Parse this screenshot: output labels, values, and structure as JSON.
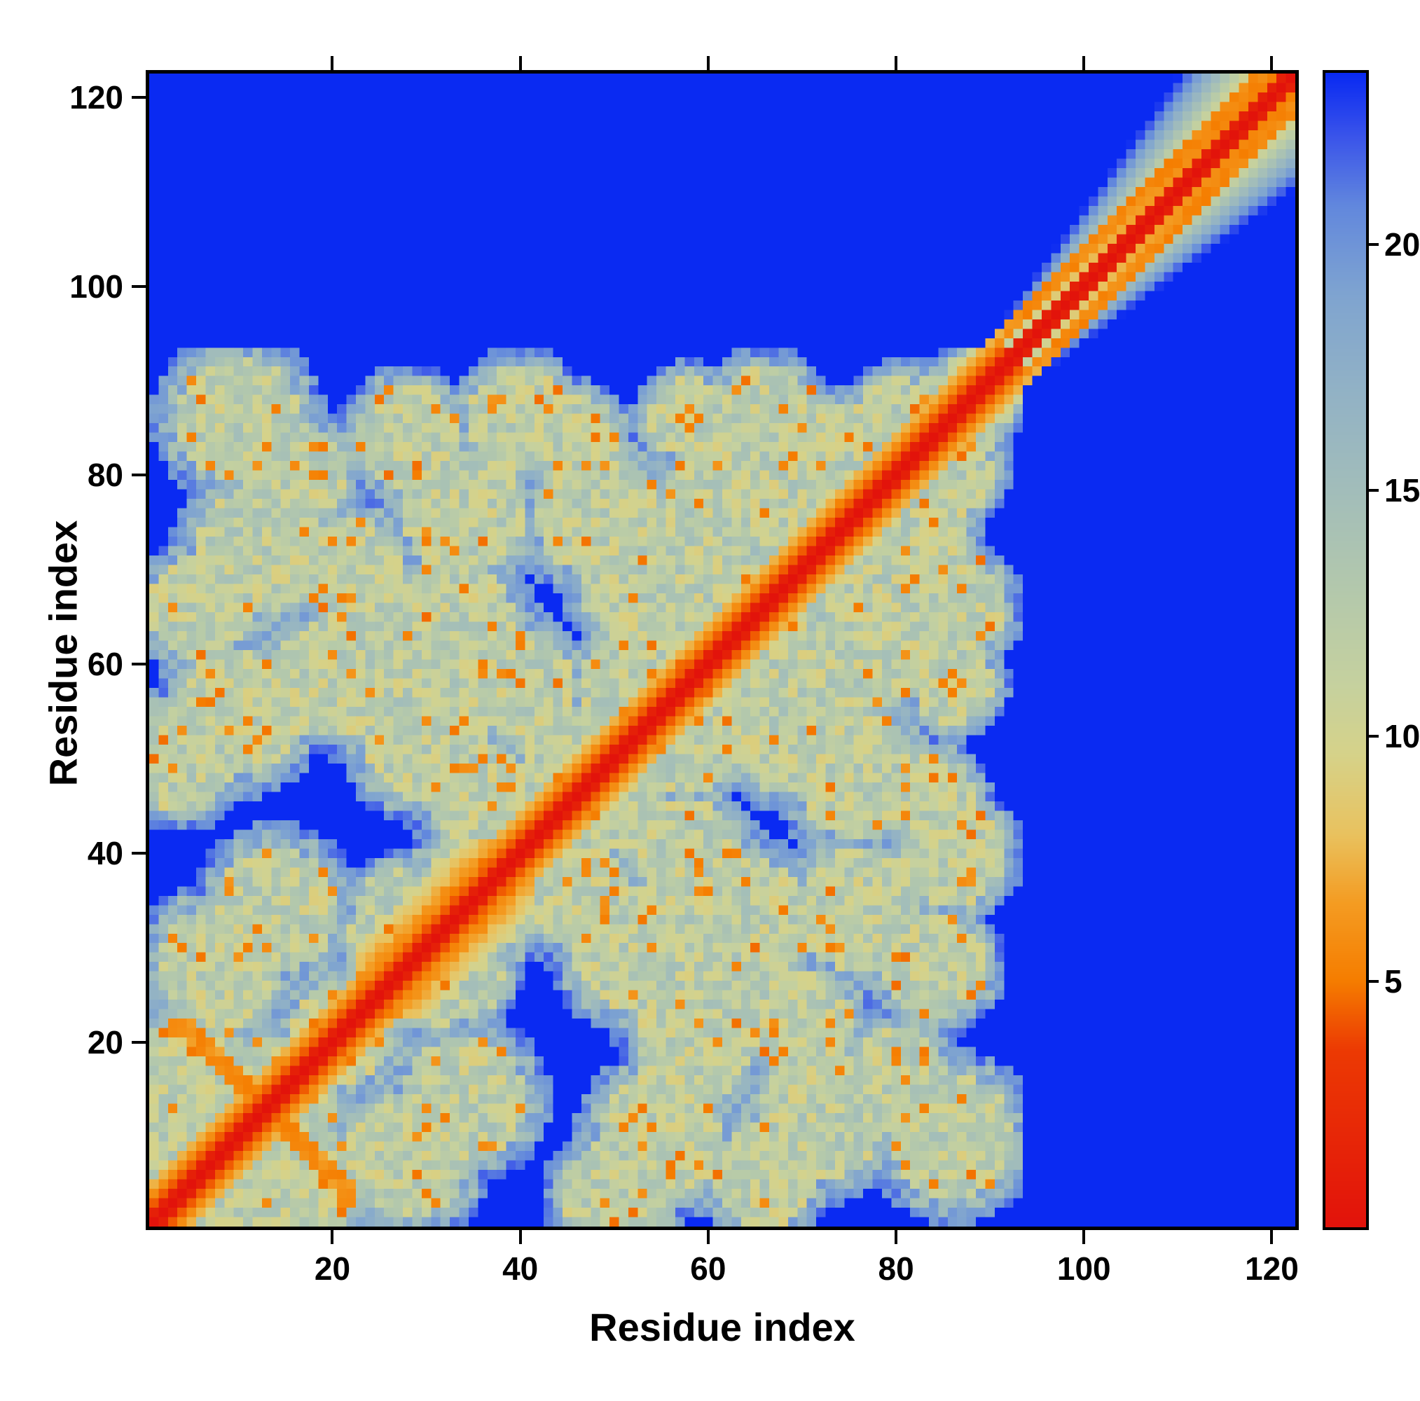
{
  "figure": {
    "background": "#ffffff"
  },
  "chart_data": {
    "type": "heatmap",
    "title": "",
    "xlabel": "Residue index",
    "ylabel": "Residue index",
    "n_residues": 122,
    "x_range": [
      1,
      122
    ],
    "y_range": [
      1,
      122
    ],
    "x_ticks": [
      20,
      40,
      60,
      80,
      100,
      120
    ],
    "y_ticks": [
      20,
      40,
      60,
      80,
      100,
      120
    ],
    "value_range": [
      0,
      23.5
    ],
    "colorbar_ticks": [
      5,
      10,
      15,
      20
    ],
    "background_value_color": "#0a2af2",
    "diagonal_value": 0,
    "colormap_stops": [
      [
        0,
        "#e2130b"
      ],
      [
        3.6,
        "#ec3a03"
      ],
      [
        5,
        "#f57d00"
      ],
      [
        6.6,
        "#f49c22"
      ],
      [
        8,
        "#e9c25f"
      ],
      [
        9.6,
        "#d6d289"
      ],
      [
        11,
        "#c6d19e"
      ],
      [
        13,
        "#b3c8ac"
      ],
      [
        15,
        "#a2bdba"
      ],
      [
        17,
        "#92b2c5"
      ],
      [
        19,
        "#7fa4d0"
      ],
      [
        20.8,
        "#6288dd"
      ],
      [
        22.2,
        "#3b55ea"
      ],
      [
        23.5,
        "#0a2af2"
      ]
    ],
    "structure_model": {
      "helix_region_start": 92,
      "helix_band_base_halfwidth": 4,
      "helix_band_growth": 0.3,
      "helix_periodic_contact_offset": 4,
      "red_block": [
        89,
        93
      ],
      "hairpin_antidiagonal": {
        "range": [
          3,
          22
        ],
        "sum": 26
      },
      "thick_diagonal_segment": [
        23,
        41
      ],
      "speckle_probability": 0.055,
      "speckle_value": 5,
      "contact_blobs": [
        [
          6,
          6,
          7
        ],
        [
          14,
          14,
          6
        ],
        [
          21,
          21,
          5
        ],
        [
          29,
          29,
          7
        ],
        [
          36,
          36,
          6
        ],
        [
          44,
          44,
          6
        ],
        [
          51,
          51,
          6
        ],
        [
          58,
          58,
          6
        ],
        [
          65,
          65,
          6
        ],
        [
          72,
          72,
          6
        ],
        [
          79,
          79,
          6
        ],
        [
          85,
          85,
          5
        ],
        [
          89,
          89,
          4
        ],
        [
          5,
          16,
          6
        ],
        [
          8,
          28,
          6
        ],
        [
          14,
          34,
          6
        ],
        [
          4,
          50,
          5
        ],
        [
          10,
          55,
          6
        ],
        [
          6,
          66,
          5
        ],
        [
          12,
          72,
          6
        ],
        [
          10,
          86,
          6
        ],
        [
          16,
          80,
          5
        ],
        [
          24,
          60,
          7
        ],
        [
          30,
          52,
          6
        ],
        [
          33,
          64,
          6
        ],
        [
          27,
          34,
          4
        ],
        [
          36,
          46,
          5
        ],
        [
          40,
          58,
          5
        ],
        [
          34,
          76,
          6
        ],
        [
          28,
          84,
          5
        ],
        [
          40,
          86,
          5
        ],
        [
          48,
          76,
          6
        ],
        [
          52,
          58,
          5
        ],
        [
          56,
          70,
          6
        ],
        [
          62,
          78,
          6
        ],
        [
          66,
          86,
          5
        ],
        [
          70,
          76,
          5
        ],
        [
          58,
          86,
          4
        ],
        [
          60,
          68,
          5
        ],
        [
          74,
          82,
          5
        ],
        [
          80,
          86,
          4
        ],
        [
          44,
          52,
          4
        ],
        [
          18,
          58,
          5
        ],
        [
          22,
          70,
          5
        ],
        [
          52,
          68,
          5
        ],
        [
          64,
          84,
          5
        ],
        [
          46,
          84,
          4
        ]
      ]
    }
  }
}
